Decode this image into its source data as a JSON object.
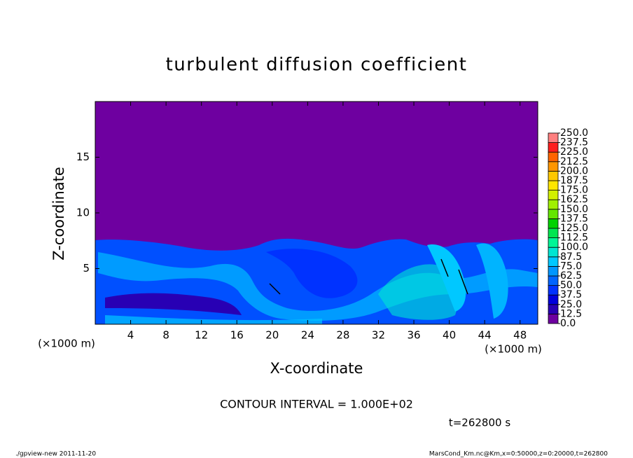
{
  "chart_data": {
    "type": "contour",
    "title": "turbulent diffusion coefficient",
    "x_label": "X-coordinate",
    "y_label": "Z-coordinate",
    "x_unit": "(×1000 m)",
    "y_unit": "(×1000 m)",
    "xlim": [
      0,
      50
    ],
    "ylim": [
      0,
      20
    ],
    "xticks": [
      4,
      8,
      12,
      16,
      20,
      24,
      28,
      32,
      36,
      40,
      44,
      48
    ],
    "yticks": [
      5,
      10,
      15
    ],
    "colorbar": {
      "levels": [
        {
          "value": 0,
          "label": "0.0"
        },
        {
          "value": 12.5,
          "label": "12.5"
        },
        {
          "value": 25,
          "label": "25.0"
        },
        {
          "value": 37.5,
          "label": "37.5"
        },
        {
          "value": 50,
          "label": "50.0"
        },
        {
          "value": 62.5,
          "label": "62.5"
        },
        {
          "value": 75,
          "label": "75.0"
        },
        {
          "value": 87.5,
          "label": "87.5"
        },
        {
          "value": 100,
          "label": "100.0"
        },
        {
          "value": 112.5,
          "label": "112.5"
        },
        {
          "value": 125,
          "label": "125.0"
        },
        {
          "value": 137.5,
          "label": "137.5"
        },
        {
          "value": 150,
          "label": "150.0"
        },
        {
          "value": 162.5,
          "label": "162.5"
        },
        {
          "value": 175,
          "label": "175.0"
        },
        {
          "value": 187.5,
          "label": "187.5"
        },
        {
          "value": 200,
          "label": "200.0"
        },
        {
          "value": 212.5,
          "label": "212.5"
        },
        {
          "value": 225,
          "label": "225.0"
        },
        {
          "value": 237.5,
          "label": "237.5"
        },
        {
          "value": 250,
          "label": "250.0"
        }
      ],
      "colors": [
        "#6e00a0",
        "#2800b4",
        "#0000dc",
        "#0032ff",
        "#0064ff",
        "#0096ff",
        "#00c8ff",
        "#00e6d2",
        "#00f596",
        "#00e650",
        "#00d200",
        "#64e600",
        "#a0f000",
        "#d2f000",
        "#ffe600",
        "#ffc800",
        "#ff9600",
        "#ff6400",
        "#ff1e1e",
        "#ff8080"
      ]
    },
    "contour_interval": "CONTOUR INTERVAL = 1.000E+02",
    "time_label": "t=262800 s",
    "footer_left": "./gpview-new  2011-11-20",
    "footer_right": "MarsCond_Km.nc@Km,x=0:50000,z=0:20000,t=262800"
  }
}
